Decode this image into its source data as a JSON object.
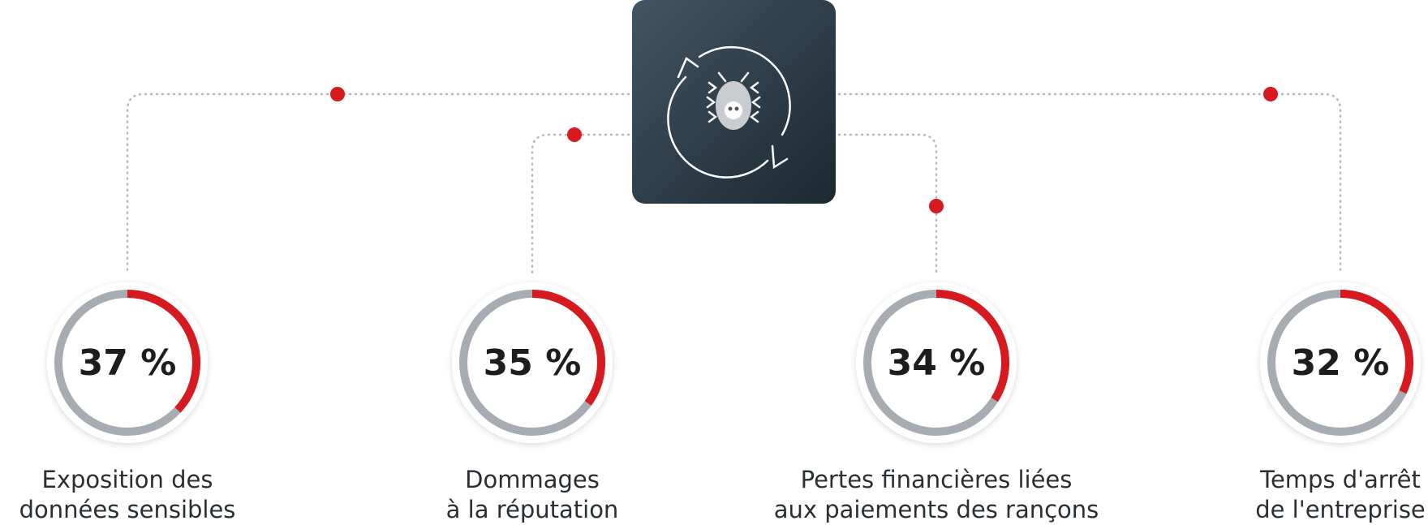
{
  "chart_data": [
    {
      "type": "donut",
      "title": [
        "Exposition des",
        "données sensibles"
      ],
      "values": [
        37
      ],
      "value_labels": [
        "37 %"
      ],
      "color": "#d71920",
      "track_color": "#a7abb2"
    },
    {
      "type": "donut",
      "title": [
        "Dommages",
        "à la réputation"
      ],
      "values": [
        35
      ],
      "value_labels": [
        "35 %"
      ],
      "color": "#d71920",
      "track_color": "#a7abb2"
    },
    {
      "type": "donut",
      "title": [
        "Pertes financières liées",
        "aux paiements des rançons"
      ],
      "values": [
        34
      ],
      "value_labels": [
        "34 %"
      ],
      "color": "#d71920",
      "track_color": "#a7abb2"
    },
    {
      "type": "donut",
      "title": [
        "Temps d'arrêt",
        "de l'entreprise"
      ],
      "values": [
        32
      ],
      "value_labels": [
        "32 %"
      ],
      "color": "#d71920",
      "track_color": "#a7abb2"
    }
  ]
}
